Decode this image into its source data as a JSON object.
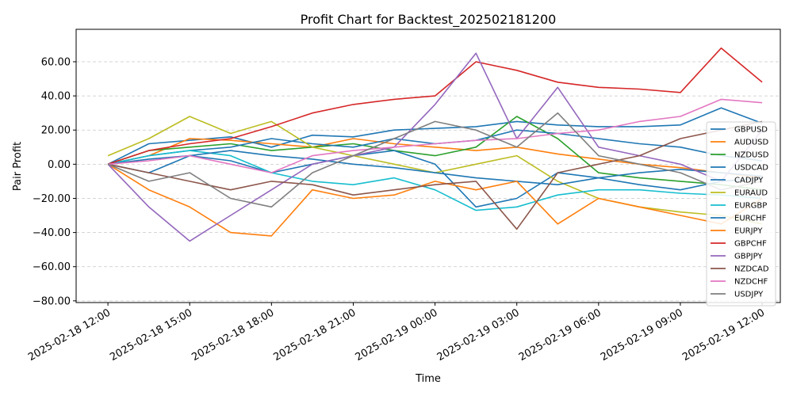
{
  "chart_data": {
    "type": "line",
    "title": "Profit Chart for Backtest_202502181200",
    "xlabel": "Time",
    "ylabel": "Pair Profit",
    "xlim": [
      "2025-02-18 10:50",
      "2025-02-19 12:40"
    ],
    "ylim": [
      -81,
      79
    ],
    "x_ticks": [
      "2025-02-18 12:00",
      "2025-02-18 15:00",
      "2025-02-18 18:00",
      "2025-02-18 21:00",
      "2025-02-19 00:00",
      "2025-02-19 03:00",
      "2025-02-19 06:00",
      "2025-02-19 09:00",
      "2025-02-19 12:00"
    ],
    "y_ticks": [
      60,
      40,
      20,
      0,
      -20,
      -40,
      -60,
      -80
    ],
    "y_tick_labels": [
      "60.00",
      "40.00",
      "20.00",
      "0.00",
      "−20.00",
      "−40.00",
      "−60.00",
      "−80.00"
    ],
    "grid": "horizontal-dashed",
    "legend_position": "right",
    "series": [
      {
        "name": "GBPUSD",
        "color": "#1f77b4",
        "x": [
          "2025-02-18 12:00",
          "2025-02-18 13:30",
          "2025-02-18 15:00",
          "2025-02-18 16:30",
          "2025-02-18 18:00",
          "2025-02-18 19:30",
          "2025-02-18 21:00",
          "2025-02-18 22:30",
          "2025-02-19 00:00",
          "2025-02-19 01:30",
          "2025-02-19 03:00",
          "2025-02-19 04:30",
          "2025-02-19 06:00",
          "2025-02-19 07:30",
          "2025-02-19 09:00",
          "2025-02-19 10:30",
          "2025-02-19 12:00"
        ],
        "values": [
          0,
          12,
          14,
          16,
          10,
          17,
          16,
          20,
          21,
          22,
          25,
          23,
          22,
          22,
          23,
          33,
          24
        ]
      },
      {
        "name": "AUDUSD",
        "color": "#ff7f0e",
        "x": [
          "2025-02-18 12:00",
          "2025-02-18 13:30",
          "2025-02-18 15:00",
          "2025-02-18 16:30",
          "2025-02-18 18:00",
          "2025-02-18 19:30",
          "2025-02-18 21:00",
          "2025-02-18 22:30",
          "2025-02-19 00:00",
          "2025-02-19 01:30",
          "2025-02-19 03:00",
          "2025-02-19 04:30",
          "2025-02-19 06:00",
          "2025-02-19 07:30",
          "2025-02-19 09:00",
          "2025-02-19 10:30",
          "2025-02-19 12:00"
        ],
        "values": [
          0,
          5,
          15,
          14,
          12,
          10,
          15,
          12,
          10,
          8,
          10,
          6,
          3,
          0,
          -2,
          -5,
          -8
        ]
      },
      {
        "name": "NZDUSD",
        "color": "#2ca02c",
        "x": [
          "2025-02-18 12:00",
          "2025-02-18 13:30",
          "2025-02-18 15:00",
          "2025-02-18 16:30",
          "2025-02-18 18:00",
          "2025-02-18 19:30",
          "2025-02-18 21:00",
          "2025-02-18 22:30",
          "2025-02-19 00:00",
          "2025-02-19 01:30",
          "2025-02-19 03:00",
          "2025-02-19 04:30",
          "2025-02-19 06:00",
          "2025-02-19 07:30",
          "2025-02-19 09:00",
          "2025-02-19 10:30",
          "2025-02-19 12:00"
        ],
        "values": [
          0,
          8,
          10,
          12,
          8,
          10,
          12,
          8,
          5,
          10,
          28,
          15,
          -5,
          -8,
          -10,
          -12,
          -15
        ]
      },
      {
        "name": "USDCAD",
        "color": "#1f77b4",
        "x": [
          "2025-02-18 12:00",
          "2025-02-18 13:30",
          "2025-02-18 15:00",
          "2025-02-18 16:30",
          "2025-02-18 18:00",
          "2025-02-18 19:30",
          "2025-02-18 21:00",
          "2025-02-18 22:30",
          "2025-02-19 00:00",
          "2025-02-19 01:30",
          "2025-02-19 03:00",
          "2025-02-19 04:30",
          "2025-02-19 06:00",
          "2025-02-19 07:30",
          "2025-02-19 09:00",
          "2025-02-19 10:30",
          "2025-02-19 12:00"
        ],
        "values": [
          0,
          -5,
          5,
          2,
          -5,
          0,
          5,
          8,
          0,
          -25,
          -20,
          -5,
          -8,
          -12,
          -15,
          -10,
          -8
        ]
      },
      {
        "name": "CADJPY",
        "color": "#1f77b4",
        "x": [
          "2025-02-18 12:00",
          "2025-02-18 13:30",
          "2025-02-18 15:00",
          "2025-02-18 16:30",
          "2025-02-18 18:00",
          "2025-02-18 19:30",
          "2025-02-18 21:00",
          "2025-02-18 22:30",
          "2025-02-19 00:00",
          "2025-02-19 01:30",
          "2025-02-19 03:00",
          "2025-02-19 04:30",
          "2025-02-19 06:00",
          "2025-02-19 07:30",
          "2025-02-19 09:00",
          "2025-02-19 10:30",
          "2025-02-19 12:00"
        ],
        "values": [
          0,
          5,
          8,
          10,
          15,
          12,
          10,
          15,
          12,
          14,
          20,
          18,
          15,
          12,
          10,
          5,
          2
        ]
      },
      {
        "name": "EURAUD",
        "color": "#bcbd22",
        "x": [
          "2025-02-18 12:00",
          "2025-02-18 13:30",
          "2025-02-18 15:00",
          "2025-02-18 16:30",
          "2025-02-18 18:00",
          "2025-02-18 19:30",
          "2025-02-18 21:00",
          "2025-02-18 22:30",
          "2025-02-19 00:00",
          "2025-02-19 01:30",
          "2025-02-19 03:00",
          "2025-02-19 04:30",
          "2025-02-19 06:00",
          "2025-02-19 07:30",
          "2025-02-19 09:00",
          "2025-02-19 10:30",
          "2025-02-19 12:00"
        ],
        "values": [
          5,
          15,
          28,
          18,
          25,
          10,
          5,
          0,
          -5,
          0,
          5,
          -10,
          -20,
          -25,
          -28,
          -30,
          -35
        ]
      },
      {
        "name": "EURGBP",
        "color": "#17becf",
        "x": [
          "2025-02-18 12:00",
          "2025-02-18 13:30",
          "2025-02-18 15:00",
          "2025-02-18 16:30",
          "2025-02-18 18:00",
          "2025-02-18 19:30",
          "2025-02-18 21:00",
          "2025-02-18 22:30",
          "2025-02-19 00:00",
          "2025-02-19 01:30",
          "2025-02-19 03:00",
          "2025-02-19 04:30",
          "2025-02-19 06:00",
          "2025-02-19 07:30",
          "2025-02-19 09:00",
          "2025-02-19 10:30",
          "2025-02-19 12:00"
        ],
        "values": [
          0,
          5,
          8,
          5,
          -5,
          -10,
          -12,
          -8,
          -15,
          -27,
          -25,
          -18,
          -15,
          -15,
          -17,
          -18,
          -20
        ]
      },
      {
        "name": "EURCHF",
        "color": "#1f77b4",
        "x": [
          "2025-02-18 12:00",
          "2025-02-18 13:30",
          "2025-02-18 15:00",
          "2025-02-18 16:30",
          "2025-02-18 18:00",
          "2025-02-18 19:30",
          "2025-02-18 21:00",
          "2025-02-18 22:30",
          "2025-02-19 00:00",
          "2025-02-19 01:30",
          "2025-02-19 03:00",
          "2025-02-19 04:30",
          "2025-02-19 06:00",
          "2025-02-19 07:30",
          "2025-02-19 09:00",
          "2025-02-19 10:30",
          "2025-02-19 12:00"
        ],
        "values": [
          0,
          3,
          5,
          8,
          5,
          3,
          0,
          -2,
          -5,
          -8,
          -10,
          -12,
          -8,
          -5,
          -3,
          -5,
          -7
        ]
      },
      {
        "name": "EURJPY",
        "color": "#ff7f0e",
        "x": [
          "2025-02-18 12:00",
          "2025-02-18 13:30",
          "2025-02-18 15:00",
          "2025-02-18 16:30",
          "2025-02-18 18:00",
          "2025-02-18 19:30",
          "2025-02-18 21:00",
          "2025-02-18 22:30",
          "2025-02-19 00:00",
          "2025-02-19 01:30",
          "2025-02-19 03:00",
          "2025-02-19 04:30",
          "2025-02-19 06:00",
          "2025-02-19 07:30",
          "2025-02-19 09:00",
          "2025-02-19 10:30",
          "2025-02-19 12:00"
        ],
        "values": [
          0,
          -15,
          -25,
          -40,
          -42,
          -15,
          -20,
          -18,
          -10,
          -15,
          -10,
          -35,
          -20,
          -25,
          -30,
          -35,
          -20
        ]
      },
      {
        "name": "GBPCHF",
        "color": "#d62728",
        "x": [
          "2025-02-18 12:00",
          "2025-02-18 13:30",
          "2025-02-18 15:00",
          "2025-02-18 16:30",
          "2025-02-18 18:00",
          "2025-02-18 19:30",
          "2025-02-18 21:00",
          "2025-02-18 22:30",
          "2025-02-19 00:00",
          "2025-02-19 01:30",
          "2025-02-19 03:00",
          "2025-02-19 04:30",
          "2025-02-19 06:00",
          "2025-02-19 07:30",
          "2025-02-19 09:00",
          "2025-02-19 10:30",
          "2025-02-19 12:00"
        ],
        "values": [
          0,
          8,
          12,
          15,
          22,
          30,
          35,
          38,
          40,
          60,
          55,
          48,
          45,
          44,
          42,
          68,
          48
        ]
      },
      {
        "name": "GBPJPY",
        "color": "#9467bd",
        "x": [
          "2025-02-18 12:00",
          "2025-02-18 13:30",
          "2025-02-18 15:00",
          "2025-02-18 16:30",
          "2025-02-18 18:00",
          "2025-02-18 19:30",
          "2025-02-18 21:00",
          "2025-02-18 22:30",
          "2025-02-19 00:00",
          "2025-02-19 01:30",
          "2025-02-19 03:00",
          "2025-02-19 04:30",
          "2025-02-19 06:00",
          "2025-02-19 07:30",
          "2025-02-19 09:00",
          "2025-02-19 10:30",
          "2025-02-19 12:00"
        ],
        "values": [
          0,
          -25,
          -45,
          -30,
          -15,
          0,
          5,
          10,
          35,
          65,
          15,
          45,
          10,
          5,
          0,
          -10,
          20
        ]
      },
      {
        "name": "NZDCAD",
        "color": "#8c564b",
        "x": [
          "2025-02-18 12:00",
          "2025-02-18 13:30",
          "2025-02-18 15:00",
          "2025-02-18 16:30",
          "2025-02-18 18:00",
          "2025-02-18 19:30",
          "2025-02-18 21:00",
          "2025-02-18 22:30",
          "2025-02-19 00:00",
          "2025-02-19 01:30",
          "2025-02-19 03:00",
          "2025-02-19 04:30",
          "2025-02-19 06:00",
          "2025-02-19 07:30",
          "2025-02-19 09:00",
          "2025-02-19 10:30",
          "2025-02-19 12:00"
        ],
        "values": [
          0,
          -5,
          -10,
          -15,
          -10,
          -12,
          -18,
          -15,
          -12,
          -10,
          -38,
          -5,
          0,
          5,
          15,
          20,
          25
        ]
      },
      {
        "name": "NZDCHF",
        "color": "#e377c2",
        "x": [
          "2025-02-18 12:00",
          "2025-02-18 13:30",
          "2025-02-18 15:00",
          "2025-02-18 16:30",
          "2025-02-18 18:00",
          "2025-02-18 19:30",
          "2025-02-18 21:00",
          "2025-02-18 22:30",
          "2025-02-19 00:00",
          "2025-02-19 01:30",
          "2025-02-19 03:00",
          "2025-02-19 04:30",
          "2025-02-19 06:00",
          "2025-02-19 07:30",
          "2025-02-19 09:00",
          "2025-02-19 10:30",
          "2025-02-19 12:00"
        ],
        "values": [
          0,
          2,
          5,
          0,
          -5,
          5,
          8,
          10,
          12,
          14,
          15,
          18,
          20,
          25,
          28,
          38,
          36
        ]
      },
      {
        "name": "USDJPY",
        "color": "#7f7f7f",
        "x": [
          "2025-02-18 12:00",
          "2025-02-18 13:30",
          "2025-02-18 15:00",
          "2025-02-18 16:30",
          "2025-02-18 18:00",
          "2025-02-18 19:30",
          "2025-02-18 21:00",
          "2025-02-18 22:30",
          "2025-02-19 00:00",
          "2025-02-19 01:30",
          "2025-02-19 03:00",
          "2025-02-19 04:30",
          "2025-02-19 06:00",
          "2025-02-19 07:30",
          "2025-02-19 09:00",
          "2025-02-19 10:30",
          "2025-02-19 12:00"
        ],
        "values": [
          0,
          -10,
          -5,
          -20,
          -25,
          -5,
          5,
          15,
          25,
          20,
          10,
          30,
          5,
          0,
          -5,
          -15,
          -10
        ]
      }
    ]
  }
}
